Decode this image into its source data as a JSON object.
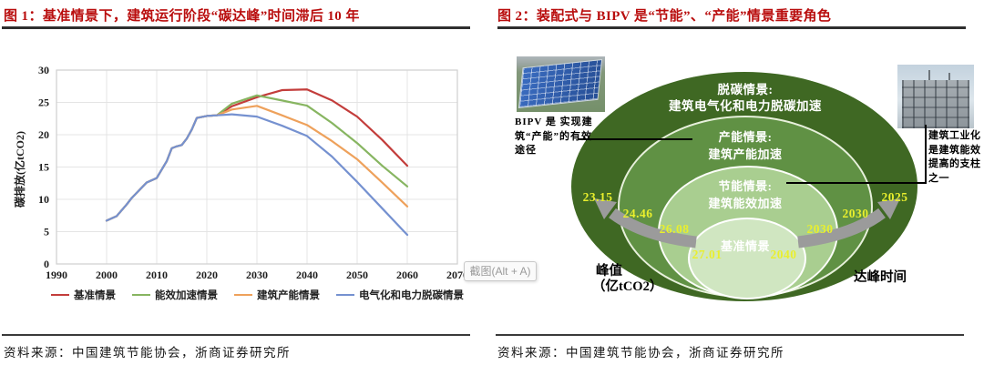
{
  "page": {
    "background": "#ffffff"
  },
  "overlay": {
    "screenshot_tooltip": "截图(Alt + A)"
  },
  "left_figure": {
    "title": "图 1：基准情景下，建筑运行阶段“碳达峰”时间滞后 10 年",
    "source": "资料来源：中国建筑节能协会，浙商证券研究所",
    "chart_data": {
      "type": "line",
      "title": "",
      "xlabel": "",
      "ylabel": "碳排放(亿tCO2)",
      "xlim": [
        1990,
        2070
      ],
      "ylim": [
        0,
        30
      ],
      "x_ticks": [
        1990,
        2000,
        2010,
        2020,
        2030,
        2040,
        2050,
        2060,
        2070
      ],
      "y_ticks": [
        0,
        5,
        10,
        15,
        20,
        25,
        30
      ],
      "grid": true,
      "legend_position": "bottom",
      "series": [
        {
          "name": "基准情景",
          "color": "#c33d3b",
          "x": [
            2000,
            2002,
            2004,
            2005,
            2006,
            2008,
            2010,
            2011,
            2012,
            2013,
            2014,
            2015,
            2016,
            2017,
            2018,
            2020,
            2022,
            2025,
            2030,
            2035,
            2040,
            2045,
            2050,
            2055,
            2060
          ],
          "y": [
            6.7,
            7.4,
            9.2,
            10.2,
            11.0,
            12.6,
            13.3,
            14.6,
            15.9,
            17.9,
            18.2,
            18.4,
            19.4,
            20.8,
            22.6,
            22.9,
            23.0,
            24.4,
            25.8,
            26.9,
            27.01,
            25.3,
            22.8,
            19.2,
            15.2
          ]
        },
        {
          "name": "能效加速情景",
          "color": "#87b561",
          "x": [
            2000,
            2002,
            2004,
            2005,
            2006,
            2008,
            2010,
            2011,
            2012,
            2013,
            2014,
            2015,
            2016,
            2017,
            2018,
            2020,
            2022,
            2025,
            2030,
            2035,
            2040,
            2045,
            2050,
            2055,
            2060
          ],
          "y": [
            6.7,
            7.4,
            9.2,
            10.2,
            11.0,
            12.6,
            13.3,
            14.6,
            15.9,
            17.9,
            18.2,
            18.4,
            19.4,
            20.8,
            22.6,
            22.9,
            23.0,
            24.8,
            26.08,
            25.3,
            24.5,
            21.8,
            18.7,
            15.2,
            12.0
          ]
        },
        {
          "name": "建筑产能情景",
          "color": "#eea15b",
          "x": [
            2000,
            2002,
            2004,
            2005,
            2006,
            2008,
            2010,
            2011,
            2012,
            2013,
            2014,
            2015,
            2016,
            2017,
            2018,
            2020,
            2022,
            2025,
            2030,
            2035,
            2040,
            2045,
            2050,
            2055,
            2060
          ],
          "y": [
            6.7,
            7.4,
            9.2,
            10.2,
            11.0,
            12.6,
            13.3,
            14.6,
            15.9,
            17.9,
            18.2,
            18.4,
            19.4,
            20.8,
            22.6,
            22.9,
            23.0,
            23.9,
            24.46,
            23.0,
            21.5,
            19.0,
            16.2,
            12.6,
            8.9
          ]
        },
        {
          "name": "电气化和电力脱碳情景",
          "color": "#7591d0",
          "x": [
            2000,
            2002,
            2004,
            2005,
            2006,
            2008,
            2010,
            2011,
            2012,
            2013,
            2014,
            2015,
            2016,
            2017,
            2018,
            2020,
            2022,
            2025,
            2030,
            2035,
            2040,
            2045,
            2050,
            2055,
            2060
          ],
          "y": [
            6.7,
            7.4,
            9.2,
            10.2,
            11.0,
            12.6,
            13.3,
            14.6,
            15.9,
            17.9,
            18.2,
            18.4,
            19.4,
            20.8,
            22.6,
            22.9,
            23.0,
            23.15,
            22.8,
            21.4,
            19.8,
            16.6,
            12.7,
            8.6,
            4.5
          ]
        }
      ]
    }
  },
  "right_figure": {
    "title": "图 2：装配式与 BIPV 是“节能”、“产能”情景重要角色",
    "source": "资料来源：中国建筑节能协会，浙商证券研究所",
    "number_color": "#e9ef2d",
    "arrow_color": "#9b9b9b",
    "rings": [
      {
        "name": "脱碳情景",
        "label_line1": "脱碳情景:",
        "label_line2": "建筑电气化和电力脱碳加速",
        "peak_value": "23.15",
        "peak_year": "2025",
        "color": "#3f6823"
      },
      {
        "name": "产能情景",
        "label_line1": "产能情景:",
        "label_line2": "建筑产能加速",
        "peak_value": "24.46",
        "peak_year": "2030",
        "color": "#609144"
      },
      {
        "name": "节能情景",
        "label_line1": "节能情景:",
        "label_line2": "建筑能效加速",
        "peak_value": "26.08",
        "peak_year": "2030",
        "color": "#a9ce90"
      },
      {
        "name": "基准情景",
        "label_line1": "基准情景",
        "label_line2": "",
        "peak_value": "27.01",
        "peak_year": "2040",
        "color": "#d0e6c1"
      }
    ],
    "peak_axis_label_line1": "峰值",
    "peak_axis_label_line2": "（亿tCO2）",
    "time_axis_label": "达峰时间",
    "left_callout": "BIPV 是 实现建筑“产能”的有效途径",
    "right_callout": "建筑工业化是建筑能效提高的支柱之一"
  }
}
